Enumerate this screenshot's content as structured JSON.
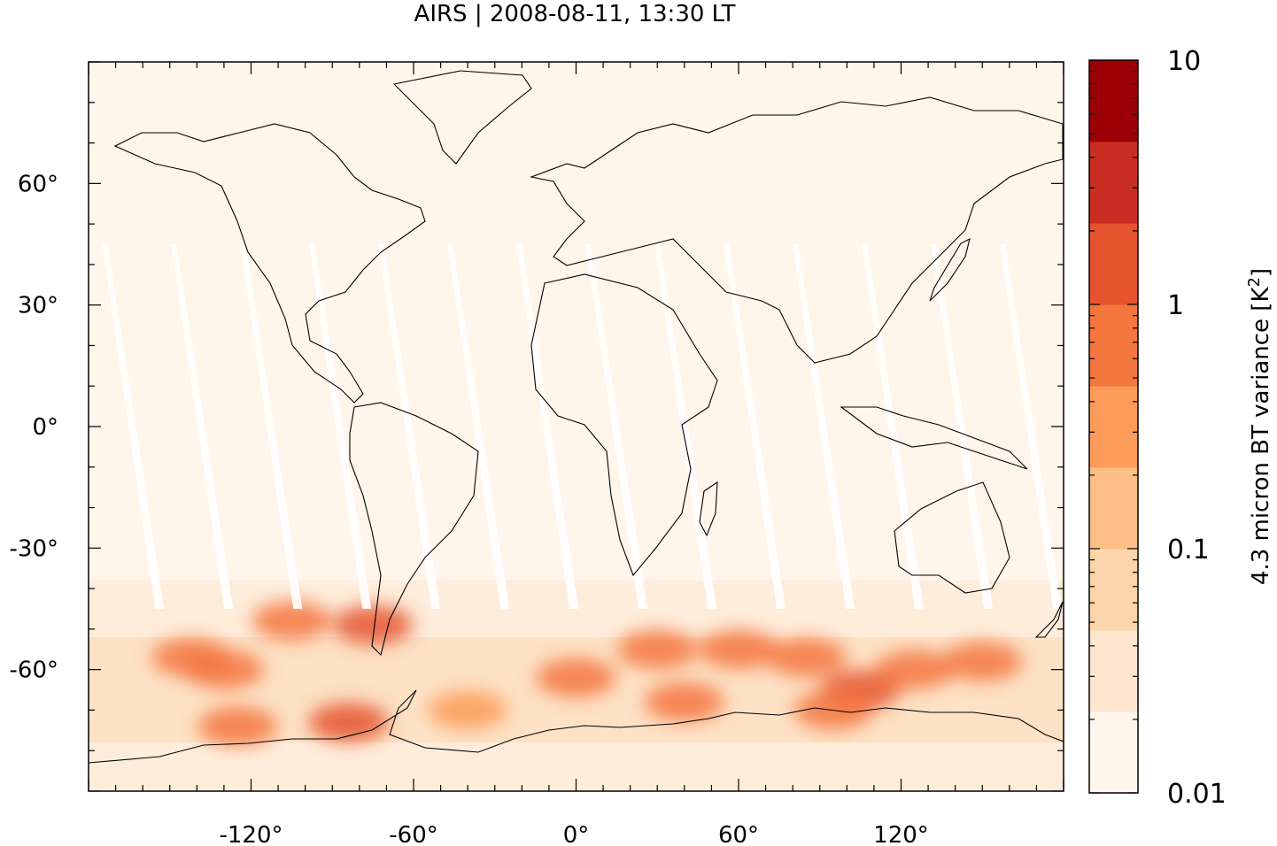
{
  "title": "AIRS | 2008-08-11, 13:30 LT",
  "map": {
    "projection": "equirectangular",
    "lon_range": [
      -180,
      180
    ],
    "lat_range": [
      -90,
      90
    ],
    "x_tick_labels": [
      {
        "lon": -120,
        "label": "-120°"
      },
      {
        "lon": -60,
        "label": "-60°"
      },
      {
        "lon": 0,
        "label": "0°"
      },
      {
        "lon": 60,
        "label": "60°"
      },
      {
        "lon": 120,
        "label": "120°"
      }
    ],
    "y_tick_labels": [
      {
        "lat": 60,
        "label": "60°"
      },
      {
        "lat": 30,
        "label": "30°"
      },
      {
        "lat": 0,
        "label": "0°"
      },
      {
        "lat": -30,
        "label": "-30°"
      },
      {
        "lat": -60,
        "label": "-60°"
      }
    ],
    "coastline_color": "#000000",
    "background_fill": "#fff5eb",
    "swath_gap_color": "#ffffff"
  },
  "colorbar": {
    "label": "4.3 micron BT variance [K²]",
    "label_prefix": "4.3 micron BT variance [K",
    "label_sup": "2",
    "label_suffix": "]",
    "scale": "log",
    "range": [
      0.01,
      10
    ],
    "tick_labels": [
      {
        "value": 0.01,
        "label": "0.01"
      },
      {
        "value": 0.1,
        "label": "0.1"
      },
      {
        "value": 1,
        "label": "1"
      },
      {
        "value": 10,
        "label": "10"
      }
    ],
    "colors": [
      "#fff5eb",
      "#fee6ce",
      "#fdd5ab",
      "#fdbe85",
      "#fd9c5a",
      "#f4763f",
      "#e5532f",
      "#c72d20",
      "#9c0006"
    ]
  },
  "hotspots": [
    {
      "lon": -125,
      "lat": -74,
      "v": 0.9
    },
    {
      "lon": -84,
      "lat": -73,
      "v": 1.0
    },
    {
      "lon": -75,
      "lat": -49,
      "v": 1.2
    },
    {
      "lon": -142,
      "lat": -57,
      "v": 0.6
    },
    {
      "lon": -105,
      "lat": -48,
      "v": 0.6
    },
    {
      "lon": -130,
      "lat": -60,
      "v": 0.5
    },
    {
      "lon": 0,
      "lat": -62,
      "v": 0.5
    },
    {
      "lon": 30,
      "lat": -55,
      "v": 0.5
    },
    {
      "lon": 60,
      "lat": -55,
      "v": 0.6
    },
    {
      "lon": 85,
      "lat": -57,
      "v": 0.5
    },
    {
      "lon": 105,
      "lat": -65,
      "v": 1.2
    },
    {
      "lon": 125,
      "lat": -60,
      "v": 0.9
    },
    {
      "lon": 150,
      "lat": -58,
      "v": 0.8
    },
    {
      "lon": 95,
      "lat": -70,
      "v": 0.9
    },
    {
      "lon": 40,
      "lat": -68,
      "v": 0.5
    },
    {
      "lon": -40,
      "lat": -70,
      "v": 0.4
    }
  ]
}
